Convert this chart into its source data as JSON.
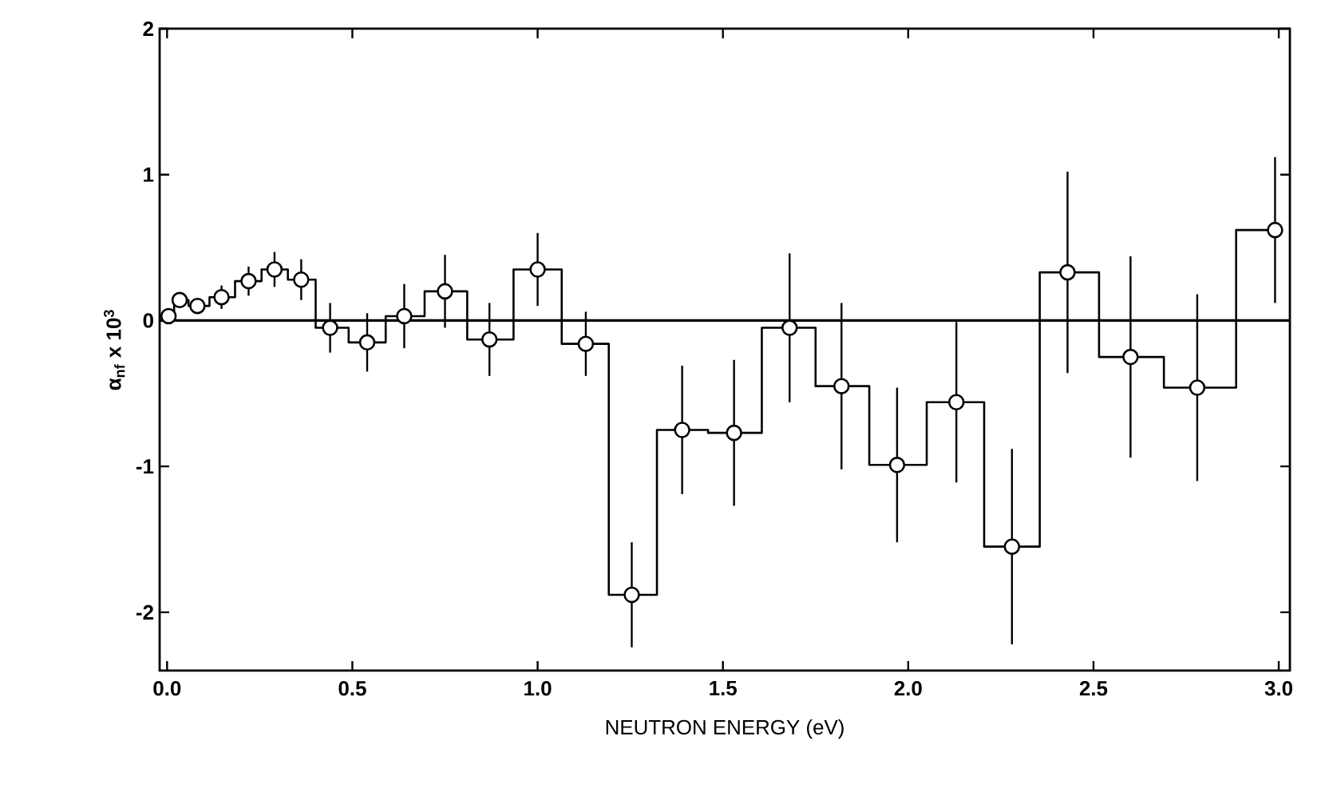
{
  "chart_data": {
    "type": "step",
    "xlabel": "NEUTRON ENERGY (eV)",
    "ylabel": "α$_{nf}$ x 10$^{3}$",
    "series": [
      {
        "color": "#000000",
        "x": [
          0.004,
          0.034,
          0.082,
          0.147,
          0.22,
          0.29,
          0.362,
          0.44,
          0.54,
          0.64,
          0.75,
          0.87,
          1.0,
          1.13,
          1.254,
          1.39,
          1.53,
          1.68,
          1.82,
          1.97,
          2.13,
          2.28,
          2.43,
          2.6,
          2.78,
          2.99
        ],
        "values": [
          0.03,
          0.14,
          0.1,
          0.16,
          0.27,
          0.35,
          0.28,
          -0.05,
          -0.15,
          0.03,
          0.2,
          -0.13,
          0.35,
          -0.16,
          -1.88,
          -0.75,
          -0.77,
          -0.05,
          -0.45,
          -0.99,
          -0.56,
          -1.55,
          0.33,
          -0.25,
          -0.46,
          0.62
        ],
        "errors": [
          0.04,
          0.05,
          0.05,
          0.08,
          0.1,
          0.12,
          0.14,
          0.17,
          0.2,
          0.22,
          0.25,
          0.25,
          0.25,
          0.22,
          0.36,
          0.44,
          0.5,
          0.51,
          0.57,
          0.53,
          0.55,
          0.67,
          0.69,
          0.69,
          0.64,
          0.5
        ]
      }
    ],
    "marker": "circle",
    "xlim": [
      -0.02,
      3.03
    ],
    "ylim": [
      -2.4,
      2
    ],
    "xticks": [
      {
        "value": 0,
        "label": "0.0"
      },
      {
        "value": 0.5,
        "label": "0.5"
      },
      {
        "value": 1,
        "label": "1.0"
      },
      {
        "value": 1.5,
        "label": "1.5"
      },
      {
        "value": 2,
        "label": "2.0"
      },
      {
        "value": 2.5,
        "label": "2.5"
      },
      {
        "value": 3,
        "label": "3.0"
      }
    ],
    "yticks": [
      -2,
      -1,
      0,
      1,
      2
    ],
    "ref_lines": [
      {
        "axis": "y",
        "value": 0
      }
    ]
  }
}
